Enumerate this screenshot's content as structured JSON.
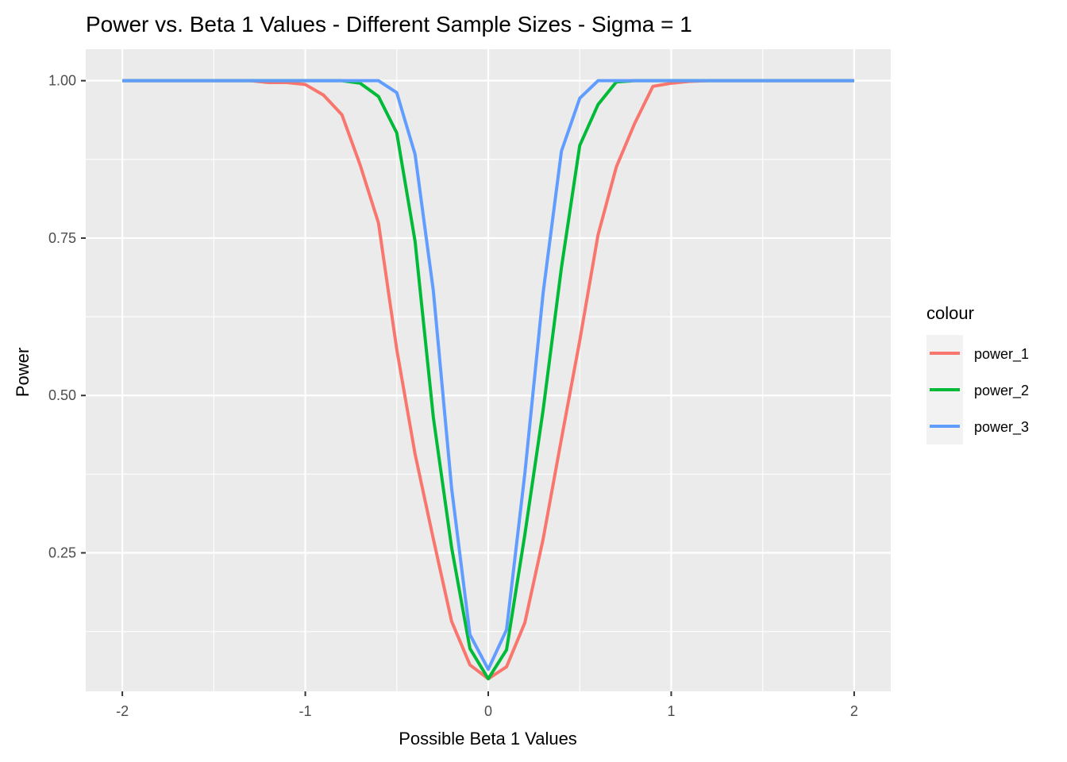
{
  "chart_data": {
    "type": "line",
    "title": "Power vs. Beta 1 Values - Different Sample Sizes - Sigma = 1",
    "xlabel": "Possible Beta 1 Values",
    "ylabel": "Power",
    "xlim": [
      -2.2,
      2.2
    ],
    "ylim": [
      0.03,
      1.05
    ],
    "x_ticks": [
      -2,
      -1,
      0,
      1,
      2
    ],
    "x_tick_labels": [
      "-2",
      "-1",
      "0",
      "1",
      "2"
    ],
    "y_ticks": [
      0.25,
      0.5,
      0.75,
      1.0
    ],
    "y_tick_labels": [
      "0.25",
      "0.50",
      "0.75",
      "1.00"
    ],
    "grid": true,
    "legend": {
      "title": "colour",
      "position": "right"
    },
    "x": [
      -2.0,
      -1.9,
      -1.8,
      -1.7,
      -1.6,
      -1.5,
      -1.4,
      -1.3,
      -1.2,
      -1.1,
      -1.0,
      -0.9,
      -0.8,
      -0.7,
      -0.6,
      -0.5,
      -0.4,
      -0.3,
      -0.2,
      -0.1,
      0.0,
      0.1,
      0.2,
      0.3,
      0.4,
      0.5,
      0.6,
      0.7,
      0.8,
      0.9,
      1.0,
      1.1,
      1.2,
      1.3,
      1.4,
      1.5,
      1.6,
      1.7,
      1.8,
      1.9,
      2.0
    ],
    "series": [
      {
        "name": "power_1",
        "color": "#F8766D",
        "values": [
          1.0,
          1.0,
          1.0,
          1.0,
          1.0,
          1.0,
          1.0,
          1.0,
          0.997,
          0.997,
          0.994,
          0.977,
          0.946,
          0.866,
          0.774,
          0.573,
          0.407,
          0.272,
          0.141,
          0.072,
          0.05,
          0.069,
          0.139,
          0.272,
          0.431,
          0.587,
          0.755,
          0.863,
          0.932,
          0.991,
          0.996,
          0.999,
          1.0,
          1.0,
          1.0,
          1.0,
          1.0,
          1.0,
          1.0,
          1.0,
          1.0
        ]
      },
      {
        "name": "power_2",
        "color": "#00BA38",
        "values": [
          1.0,
          1.0,
          1.0,
          1.0,
          1.0,
          1.0,
          1.0,
          1.0,
          1.0,
          1.0,
          1.0,
          1.0,
          1.0,
          0.996,
          0.975,
          0.917,
          0.745,
          0.465,
          0.258,
          0.098,
          0.05,
          0.096,
          0.279,
          0.477,
          0.703,
          0.897,
          0.962,
          0.998,
          1.0,
          1.0,
          1.0,
          1.0,
          1.0,
          1.0,
          1.0,
          1.0,
          1.0,
          1.0,
          1.0,
          1.0,
          1.0
        ]
      },
      {
        "name": "power_3",
        "color": "#619CFF",
        "values": [
          1.0,
          1.0,
          1.0,
          1.0,
          1.0,
          1.0,
          1.0,
          1.0,
          1.0,
          1.0,
          1.0,
          1.0,
          1.0,
          1.0,
          1.0,
          0.981,
          0.883,
          0.666,
          0.352,
          0.12,
          0.065,
          0.128,
          0.376,
          0.663,
          0.888,
          0.972,
          1.0,
          1.0,
          1.0,
          1.0,
          1.0,
          1.0,
          1.0,
          1.0,
          1.0,
          1.0,
          1.0,
          1.0,
          1.0,
          1.0,
          1.0
        ]
      }
    ]
  }
}
